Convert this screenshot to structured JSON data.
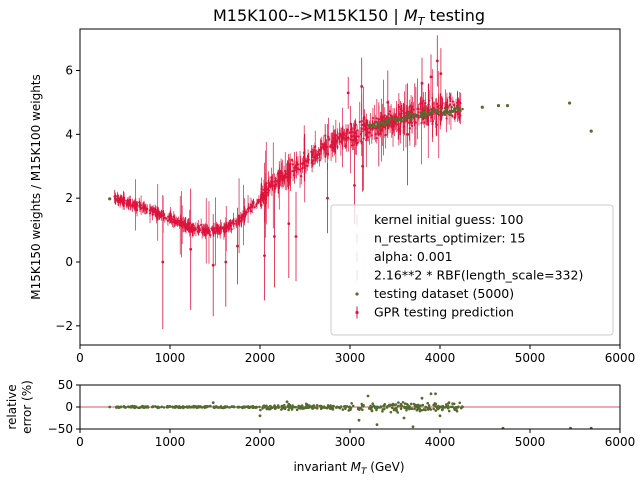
{
  "chart_data": [
    {
      "type": "scatter",
      "title": "M15K100-->M15K150 | ",
      "title_math": "M",
      "title_math_sub": "T",
      "title_math_suffix": " testing",
      "xlabel": "",
      "ylabel": "M15K150 weights / M15K100 weights",
      "xlim": [
        0,
        6000
      ],
      "ylim": [
        -2.6,
        7.3
      ],
      "xticks": [
        0,
        1000,
        2000,
        3000,
        4000,
        5000,
        6000
      ],
      "yticks": [
        -2,
        0,
        2,
        4,
        6
      ],
      "colors": {
        "prediction": "#dc143c",
        "testing": "#556b2f"
      },
      "legend": {
        "position": "lower-right",
        "entries": [
          "kernel initial guess: 100",
          "n_restarts_optimizer: 15",
          "alpha: 0.001",
          "2.16**2 * RBF(length_scale=332)",
          "testing dataset (5000)",
          "GPR testing prediction"
        ]
      },
      "series": [
        {
          "name": "GPR testing prediction",
          "style": "errorbar",
          "curve_x": [
            330,
            400,
            500,
            600,
            700,
            800,
            900,
            1000,
            1100,
            1200,
            1300,
            1400,
            1500,
            1600,
            1700,
            1800,
            1900,
            2000,
            2100,
            2200,
            2300,
            2400,
            2500,
            2600,
            2700,
            2800,
            2900,
            3000,
            3100,
            3200,
            3300,
            3400,
            3500,
            3600,
            3700,
            3800,
            3900,
            4000,
            4100,
            4200
          ],
          "curve_y": [
            1.98,
            1.95,
            1.88,
            1.8,
            1.7,
            1.6,
            1.5,
            1.38,
            1.25,
            1.12,
            1.02,
            0.97,
            0.98,
            1.05,
            1.2,
            1.4,
            1.7,
            2.0,
            2.3,
            2.55,
            2.75,
            2.95,
            3.15,
            3.35,
            3.55,
            3.7,
            3.85,
            3.98,
            4.1,
            4.2,
            4.3,
            4.38,
            4.45,
            4.52,
            4.58,
            4.63,
            4.68,
            4.72,
            4.76,
            4.8
          ],
          "outliers": [
            {
              "x": 920,
              "y": 0.0,
              "err": 2.1
            },
            {
              "x": 1230,
              "y": 0.4,
              "err": 1.9
            },
            {
              "x": 1480,
              "y": -0.1,
              "err": 1.6
            },
            {
              "x": 1620,
              "y": 0.0,
              "err": 1.4
            },
            {
              "x": 1750,
              "y": 0.5,
              "err": 1.2
            },
            {
              "x": 2050,
              "y": 0.2,
              "err": 1.4
            },
            {
              "x": 2160,
              "y": 0.8,
              "err": 1.6
            },
            {
              "x": 2320,
              "y": 1.2,
              "err": 1.7
            },
            {
              "x": 2400,
              "y": 0.8,
              "err": 1.4
            },
            {
              "x": 2750,
              "y": 2.0,
              "err": 1.1
            },
            {
              "x": 2980,
              "y": 5.3,
              "err": 0.5
            },
            {
              "x": 3050,
              "y": 2.4,
              "err": 1.2
            },
            {
              "x": 3130,
              "y": 5.5,
              "err": 0.9
            },
            {
              "x": 3140,
              "y": 3.0,
              "err": 0.8
            },
            {
              "x": 3320,
              "y": 4.0,
              "err": 1.0
            },
            {
              "x": 3420,
              "y": 5.0,
              "err": 1.0
            },
            {
              "x": 3640,
              "y": 4.0,
              "err": 1.6
            },
            {
              "x": 3720,
              "y": 4.6,
              "err": 1.0
            },
            {
              "x": 3800,
              "y": 5.6,
              "err": 0.8
            },
            {
              "x": 3900,
              "y": 5.8,
              "err": 0.7
            },
            {
              "x": 3970,
              "y": 6.3,
              "err": 0.8
            },
            {
              "x": 4010,
              "y": 5.9,
              "err": 0.8
            }
          ]
        },
        {
          "name": "testing dataset (5000)",
          "style": "points",
          "outliers": [
            {
              "x": 330,
              "y": 1.98
            },
            {
              "x": 4470,
              "y": 4.85
            },
            {
              "x": 4650,
              "y": 4.9
            },
            {
              "x": 4750,
              "y": 4.9
            },
            {
              "x": 5440,
              "y": 4.98
            },
            {
              "x": 5680,
              "y": 4.1
            }
          ]
        }
      ]
    },
    {
      "type": "scatter",
      "xlabel": "invariant ",
      "xlabel_math": "M",
      "xlabel_math_sub": "T",
      "xlabel_suffix": " (GeV)",
      "ylabel": [
        "relative",
        "error (%)"
      ],
      "xlim": [
        0,
        6000
      ],
      "ylim": [
        -50,
        50
      ],
      "xticks": [
        0,
        1000,
        2000,
        3000,
        4000,
        5000,
        6000
      ],
      "yticks": [
        -50,
        0,
        50
      ],
      "reference_line_y": 0,
      "series": [
        {
          "name": "testing dataset (5000)",
          "x_range": [
            400,
            4250
          ],
          "outliers": [
            {
              "x": 330,
              "y": 0
            },
            {
              "x": 1480,
              "y": 10
            },
            {
              "x": 2000,
              "y": -20
            },
            {
              "x": 2300,
              "y": 12
            },
            {
              "x": 3100,
              "y": -30
            },
            {
              "x": 3200,
              "y": 25
            },
            {
              "x": 3300,
              "y": -40
            },
            {
              "x": 3600,
              "y": -25
            },
            {
              "x": 3700,
              "y": -45
            },
            {
              "x": 3800,
              "y": 20
            },
            {
              "x": 3900,
              "y": 30
            },
            {
              "x": 3950,
              "y": 30
            },
            {
              "x": 4000,
              "y": -20
            },
            {
              "x": 4100,
              "y": 10
            },
            {
              "x": 4250,
              "y": 0
            },
            {
              "x": 4700,
              "y": -48
            },
            {
              "x": 5450,
              "y": -48
            },
            {
              "x": 5680,
              "y": -48
            }
          ]
        }
      ]
    }
  ]
}
